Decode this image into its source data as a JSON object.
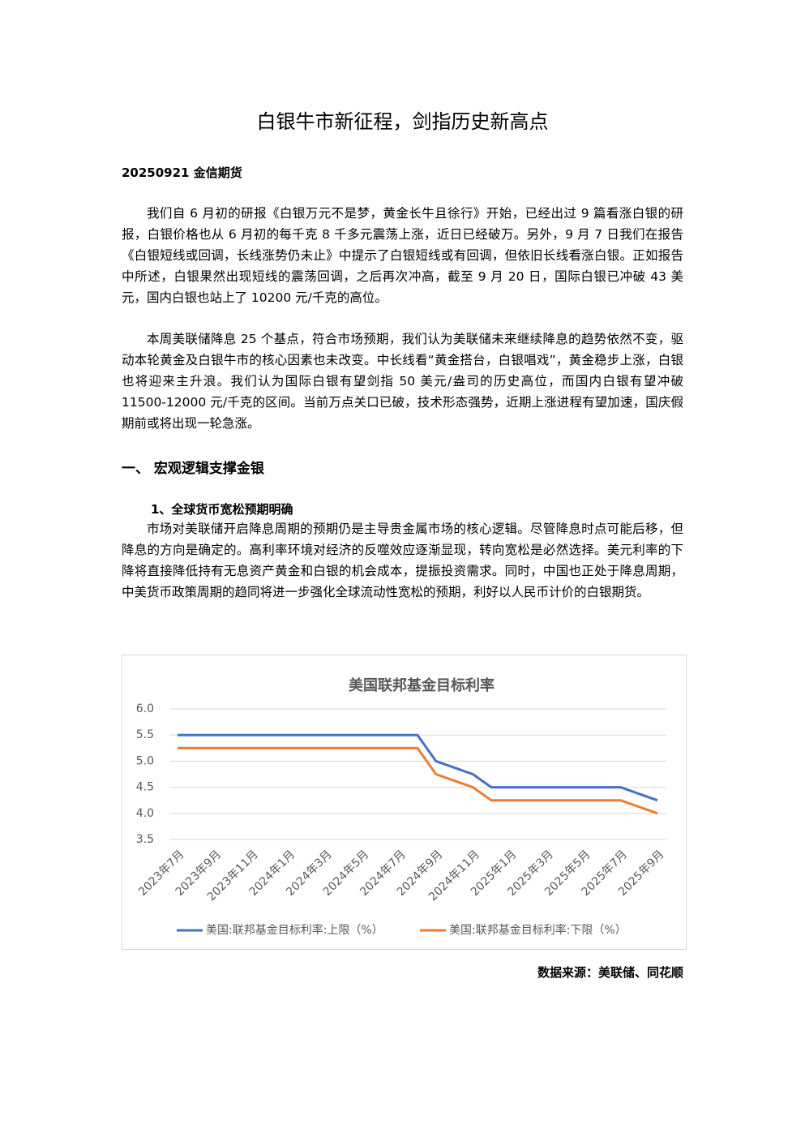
{
  "header": {
    "title": "白银牛市新征程，剑指历史新高点",
    "byline": "20250921 金信期货"
  },
  "paragraphs": [
    "我们自 6 月初的研报《白银万元不是梦，黄金长牛且徐行》开始，已经出过 9 篇看涨白银的研报，白银价格也从 6 月初的每千克 8 千多元震荡上涨，近日已经破万。另外，9 月 7 日我们在报告《白银短线或回调，长线涨势仍未止》中提示了白银短线或有回调，但依旧长线看涨白银。正如报告中所述，白银果然出现短线的震荡回调，之后再次冲高，截至 9 月 20 日，国际白银已冲破 43 美元，国内白银也站上了 10200 元/千克的高位。",
    "本周美联储降息 25 个基点，符合市场预期，我们认为美联储未来继续降息的趋势依然不变，驱动本轮黄金及白银牛市的核心因素也未改变。中长线看“黄金搭台，白银唱戏”，黄金稳步上涨，白银也将迎来主升浪。我们认为国际白银有望剑指 50 美元/盎司的历史高位，而国内白银有望冲破 11500-12000 元/千克的区间。当前万点关口已破，技术形态强势，近期上涨进程有望加速，国庆假期前或将出现一轮急涨。"
  ],
  "section": {
    "heading": "一、 宏观逻辑支撑金银",
    "subheading": "1、全球货币宽松预期明确",
    "paragraph": "市场对美联储开启降息周期的预期仍是主导贵金属市场的核心逻辑。尽管降息时点可能后移，但降息的方向是确定的。高利率环境对经济的反噬效应逐渐显现，转向宽松是必然选择。美元利率的下降将直接降低持有无息资产黄金和白银的机会成本，提振投资需求。同时，中国也正处于降息周期，中美货币政策周期的趋同将进一步强化全球流动性宽松的预期，利好以人民币计价的白银期货。"
  },
  "chart_data": {
    "type": "line",
    "title": "美国联邦基金目标利率",
    "categories": [
      "2023年7月",
      null,
      "2023年9月",
      null,
      "2023年11月",
      null,
      "2024年1月",
      null,
      "2024年3月",
      null,
      "2024年5月",
      null,
      "2024年7月",
      null,
      "2024年9月",
      null,
      "2024年11月",
      null,
      "2025年1月",
      null,
      "2025年3月",
      null,
      "2025年5月",
      null,
      "2025年7月",
      null,
      "2025年9月"
    ],
    "series": [
      {
        "name": "美国:联邦基金目标利率:上限（%）",
        "color": "#4472c4",
        "values": [
          5.5,
          5.5,
          5.5,
          5.5,
          5.5,
          5.5,
          5.5,
          5.5,
          5.5,
          5.5,
          5.5,
          5.5,
          5.5,
          5.5,
          5.0,
          4.875,
          4.75,
          4.5,
          4.5,
          4.5,
          4.5,
          4.5,
          4.5,
          4.5,
          4.5,
          4.375,
          4.25
        ]
      },
      {
        "name": "美国:联邦基金目标利率:下限（%）",
        "color": "#ed7d31",
        "values": [
          5.25,
          5.25,
          5.25,
          5.25,
          5.25,
          5.25,
          5.25,
          5.25,
          5.25,
          5.25,
          5.25,
          5.25,
          5.25,
          5.25,
          4.75,
          4.625,
          4.5,
          4.25,
          4.25,
          4.25,
          4.25,
          4.25,
          4.25,
          4.25,
          4.25,
          4.125,
          4.0
        ]
      }
    ],
    "ylim": [
      3.5,
      6.0
    ],
    "yticks": [
      3.5,
      {
        "value": 4,
        "label": "4.0"
      },
      4.5,
      {
        "value": 5,
        "label": "5.0"
      },
      5.5,
      {
        "value": 6,
        "label": "6.0"
      }
    ],
    "grid": true,
    "legend": "bottom"
  },
  "source": "数据来源：美联储、同花顺"
}
